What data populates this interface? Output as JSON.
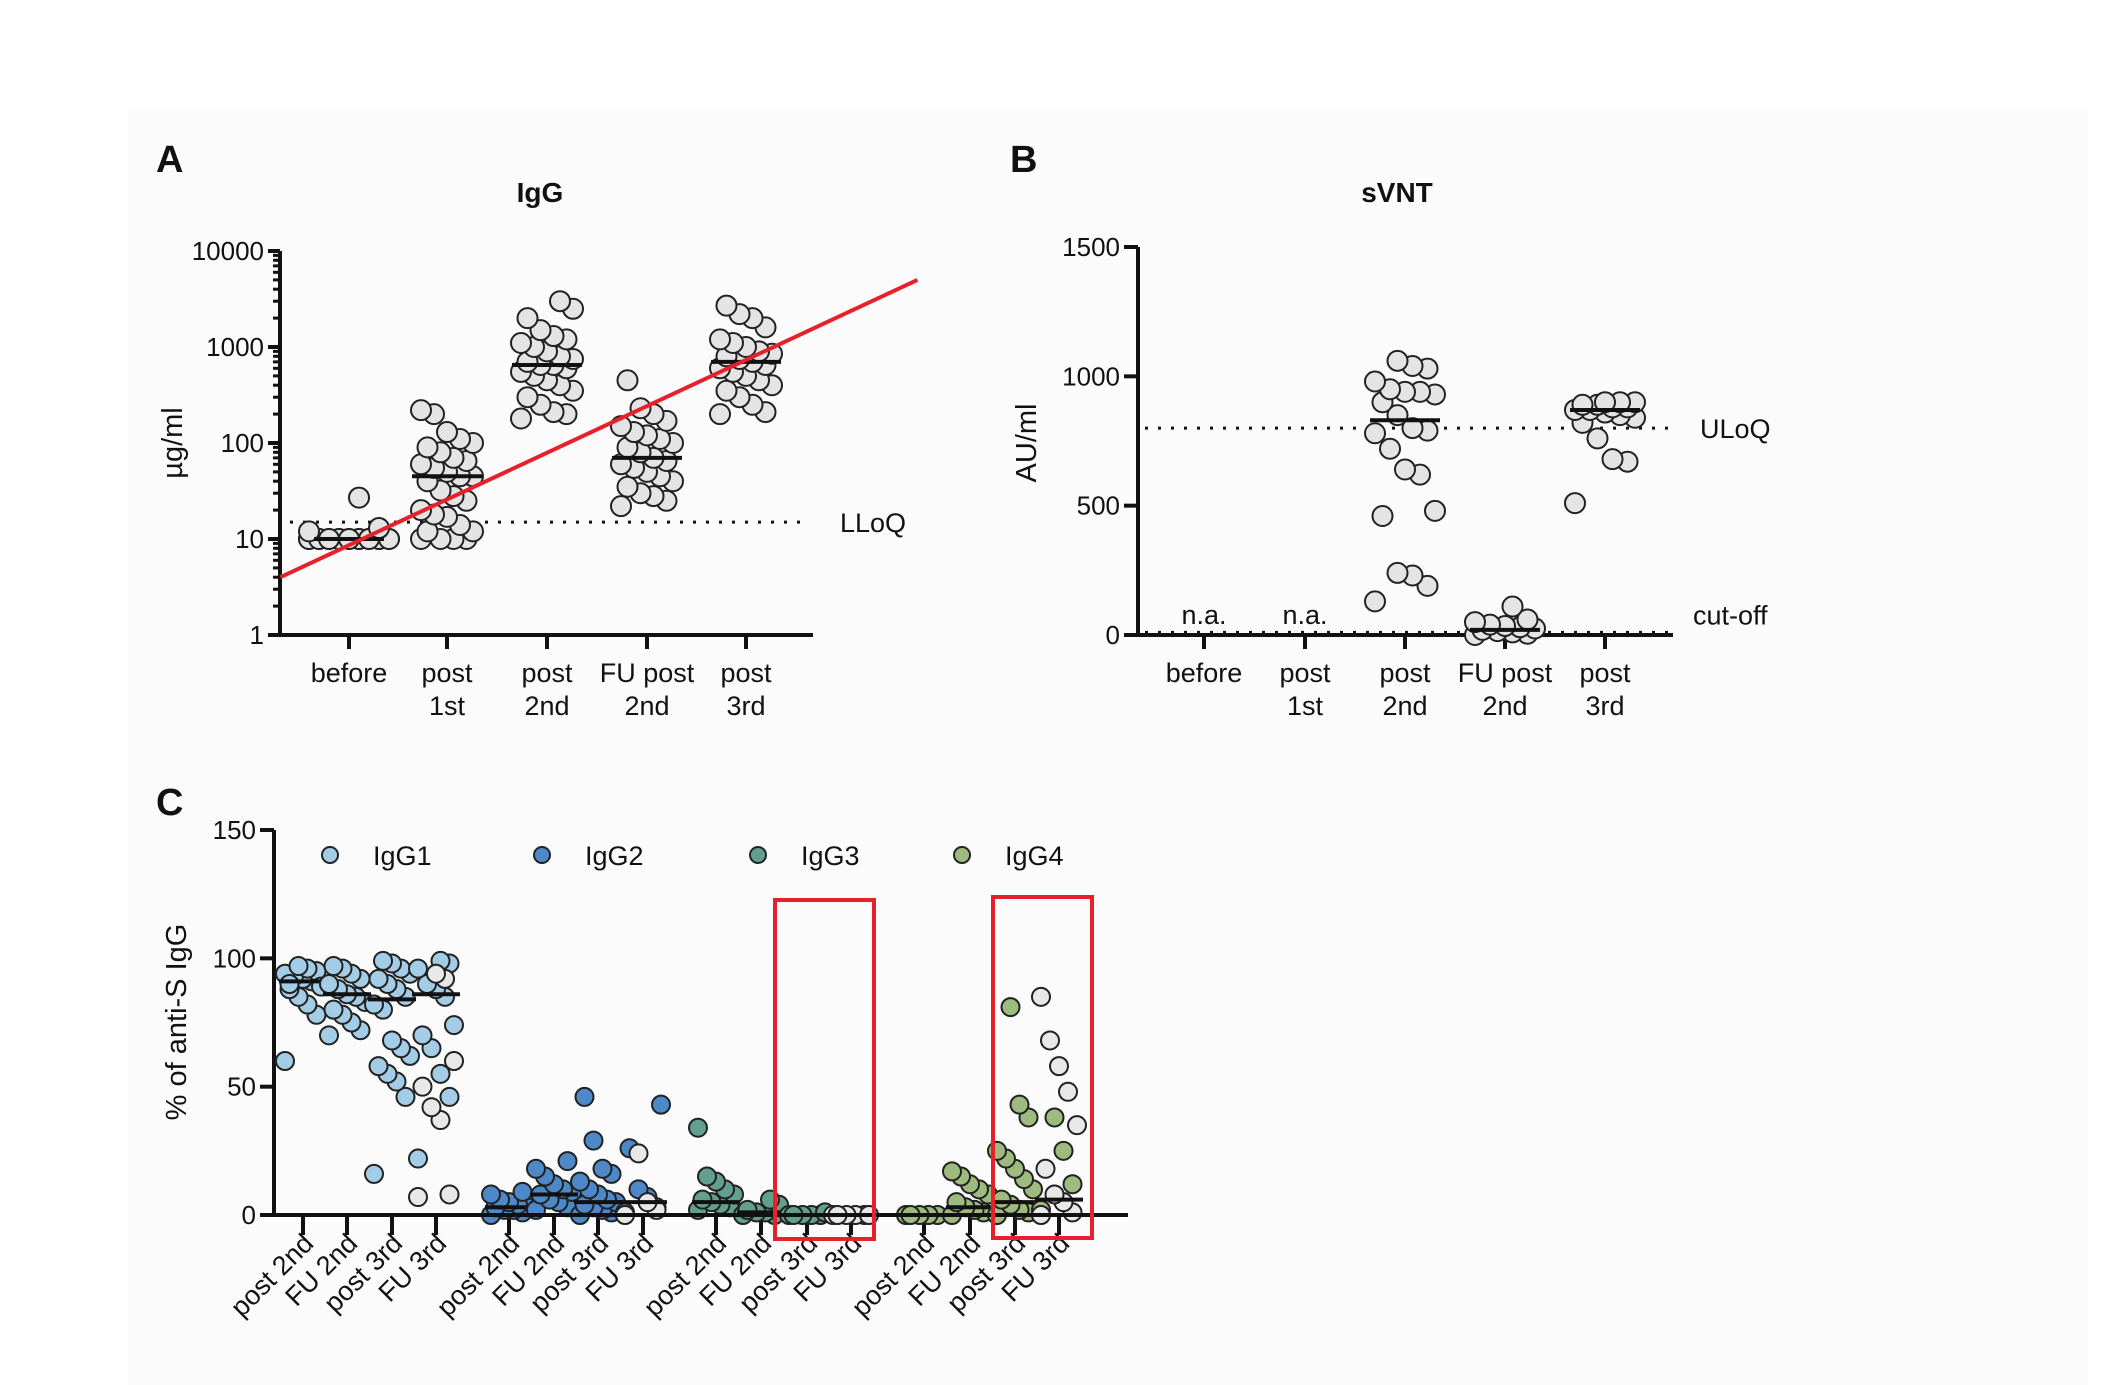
{
  "chart_data": [
    {
      "panel": "A",
      "type": "scatter",
      "title": "IgG",
      "ylabel": "µg/ml",
      "yscale": "log",
      "ylim": [
        1,
        10000
      ],
      "yticks": [
        "1",
        "10",
        "100",
        "1000",
        "10000"
      ],
      "categories": [
        "before",
        "post\n1st",
        "post\n2nd",
        "FU post\n2nd",
        "post\n3rd"
      ],
      "category_lines": [
        [
          "before",
          ""
        ],
        [
          "post",
          "1st"
        ],
        [
          "post",
          "2nd"
        ],
        [
          "FU post",
          "2nd"
        ],
        [
          "post",
          "3rd"
        ]
      ],
      "reference_line": {
        "label": "LLoQ",
        "value": 15
      },
      "trend_line": {
        "color": "#e8202a",
        "from": [
          0.3,
          4
        ],
        "to": [
          6.8,
          5000
        ]
      },
      "series": [
        {
          "category": "before",
          "median": 10,
          "values": [
            10,
            10,
            10,
            10,
            10,
            10,
            10,
            10,
            10,
            10,
            10,
            10,
            10,
            10,
            10,
            10,
            10,
            10,
            12,
            13,
            27
          ]
        },
        {
          "category": "post 1st",
          "median": 45,
          "values": [
            10,
            10,
            10,
            10,
            12,
            12,
            14,
            17,
            18,
            20,
            25,
            28,
            32,
            40,
            45,
            45,
            50,
            55,
            60,
            65,
            70,
            80,
            90,
            100,
            110,
            130,
            200,
            220
          ]
        },
        {
          "category": "post 2nd",
          "median": 650,
          "values": [
            180,
            200,
            210,
            250,
            300,
            350,
            400,
            450,
            500,
            550,
            600,
            650,
            650,
            700,
            750,
            800,
            900,
            1000,
            1100,
            1200,
            1300,
            1500,
            2000,
            2500,
            3000
          ]
        },
        {
          "category": "FU post 2nd",
          "median": 70,
          "values": [
            22,
            25,
            28,
            30,
            35,
            40,
            45,
            50,
            55,
            60,
            65,
            70,
            80,
            90,
            100,
            110,
            120,
            130,
            150,
            170,
            200,
            230,
            450
          ]
        },
        {
          "category": "post 3rd",
          "median": 700,
          "values": [
            200,
            210,
            250,
            300,
            350,
            400,
            450,
            500,
            550,
            600,
            650,
            700,
            750,
            800,
            850,
            900,
            1000,
            1100,
            1200,
            1600,
            2000,
            2200,
            2700
          ]
        }
      ]
    },
    {
      "panel": "B",
      "type": "scatter",
      "title": "sVNT",
      "ylabel": "AU/ml",
      "ylim": [
        0,
        1500
      ],
      "yticks": [
        "0",
        "500",
        "1000",
        "1500"
      ],
      "category_lines": [
        [
          "before",
          ""
        ],
        [
          "post",
          "1st"
        ],
        [
          "post",
          "2nd"
        ],
        [
          "FU post",
          "2nd"
        ],
        [
          "post",
          "3rd"
        ]
      ],
      "reference_lines": [
        {
          "label": "ULoQ",
          "value": 800
        },
        {
          "label": "cut-off",
          "value": 10
        }
      ],
      "na_label": "n.a.",
      "series": [
        {
          "category": "before",
          "na": true,
          "values": []
        },
        {
          "category": "post 1st",
          "na": true,
          "values": []
        },
        {
          "category": "post 2nd",
          "median": 830,
          "values": [
            130,
            190,
            230,
            240,
            460,
            480,
            620,
            640,
            720,
            780,
            790,
            800,
            850,
            900,
            930,
            940,
            940,
            950,
            980,
            1030,
            1040,
            1060
          ]
        },
        {
          "category": "FU post 2nd",
          "median": 20,
          "values": [
            0,
            5,
            10,
            15,
            20,
            25,
            30,
            35,
            40,
            50,
            60,
            110
          ]
        },
        {
          "category": "post 3rd",
          "median": 870,
          "values": [
            510,
            670,
            680,
            760,
            820,
            840,
            850,
            860,
            870,
            870,
            880,
            880,
            890,
            890,
            900,
            900,
            900
          ]
        }
      ]
    },
    {
      "panel": "C",
      "type": "scatter",
      "ylabel": "% of anti-S IgG",
      "ylim": [
        0,
        150
      ],
      "yticks": [
        "0",
        "50",
        "100",
        "150"
      ],
      "legend": [
        {
          "label": "IgG1",
          "color": "#a3cde6"
        },
        {
          "label": "IgG2",
          "color": "#4d88c9"
        },
        {
          "label": "IgG3",
          "color": "#62a08e"
        },
        {
          "label": "IgG4",
          "color": "#9dbb7e"
        }
      ],
      "legend_placement": "top",
      "highlight_color": "#e8202a",
      "highlight_boxes": [
        [
          "IgG3",
          "post 3rd",
          "FU 3rd"
        ],
        [
          "IgG4",
          "post 3rd",
          "FU 3rd"
        ]
      ],
      "light_color": "#e8e8e8",
      "series": [
        {
          "subclass": "IgG1",
          "category": "post 2nd",
          "median": 91,
          "values": [
            60,
            78,
            82,
            85,
            88,
            90,
            91,
            92,
            93,
            94,
            95,
            96,
            97,
            90,
            89
          ],
          "light": []
        },
        {
          "subclass": "IgG1",
          "category": "FU 2nd",
          "median": 86,
          "values": [
            70,
            72,
            75,
            78,
            80,
            83,
            85,
            86,
            88,
            90,
            92,
            94,
            96,
            97
          ],
          "light": []
        },
        {
          "subclass": "IgG1",
          "category": "post 3rd",
          "median": 84,
          "values": [
            16,
            46,
            52,
            55,
            58,
            62,
            65,
            68,
            80,
            82,
            85,
            88,
            90,
            92,
            94,
            96,
            98,
            99
          ],
          "light": []
        },
        {
          "subclass": "IgG1",
          "category": "FU 3rd",
          "median": 86,
          "values": [
            22,
            46,
            55,
            65,
            70,
            74,
            85,
            88,
            90,
            96,
            98,
            99
          ],
          "light": [
            7,
            8,
            37,
            42,
            50,
            60,
            92,
            94
          ]
        },
        {
          "subclass": "IgG2",
          "category": "post 2nd",
          "median": 3,
          "values": [
            0,
            1,
            2,
            2,
            3,
            3,
            4,
            5,
            6,
            8,
            9
          ],
          "light": []
        },
        {
          "subclass": "IgG2",
          "category": "FU 2nd",
          "median": 8,
          "values": [
            2,
            3,
            5,
            6,
            8,
            9,
            10,
            12,
            15,
            18,
            21
          ],
          "light": []
        },
        {
          "subclass": "IgG2",
          "category": "post 3rd",
          "median": 5,
          "values": [
            0,
            1,
            2,
            3,
            4,
            5,
            6,
            8,
            10,
            13,
            16,
            18,
            29,
            46
          ],
          "light": []
        },
        {
          "subclass": "IgG2",
          "category": "FU 3rd",
          "median": 5,
          "values": [
            1,
            3,
            7,
            10,
            26,
            43
          ],
          "light": [
            0,
            2,
            5,
            24
          ]
        },
        {
          "subclass": "IgG3",
          "category": "post 2nd",
          "median": 5,
          "values": [
            2,
            3,
            4,
            5,
            6,
            8,
            10,
            13,
            15,
            34
          ],
          "light": []
        },
        {
          "subclass": "IgG3",
          "category": "FU 2nd",
          "median": 1,
          "values": [
            0,
            0,
            1,
            1,
            2,
            4,
            6
          ],
          "light": []
        },
        {
          "subclass": "IgG3",
          "category": "post 3rd",
          "median": 0,
          "values": [
            0,
            0,
            0,
            0,
            0,
            1
          ],
          "light": []
        },
        {
          "subclass": "IgG3",
          "category": "FU 3rd",
          "median": 0,
          "values": [],
          "light": [
            0,
            0,
            0,
            0,
            0,
            0
          ]
        },
        {
          "subclass": "IgG4",
          "category": "post 2nd",
          "median": 0,
          "values": [
            0,
            0,
            0,
            0,
            0
          ],
          "light": []
        },
        {
          "subclass": "IgG4",
          "category": "FU 2nd",
          "median": 3,
          "values": [
            0,
            1,
            2,
            3,
            5,
            8,
            10,
            12,
            15,
            17
          ],
          "light": []
        },
        {
          "subclass": "IgG4",
          "category": "post 3rd",
          "median": 5,
          "values": [
            0,
            1,
            2,
            4,
            6,
            10,
            14,
            18,
            22,
            25,
            38,
            43,
            81
          ],
          "light": []
        },
        {
          "subclass": "IgG4",
          "category": "FU 3rd",
          "median": 6,
          "values": [
            2,
            12,
            25,
            38
          ],
          "light": [
            0,
            1,
            5,
            8,
            18,
            35,
            48,
            58,
            68,
            85
          ]
        }
      ]
    }
  ],
  "panel_labels": [
    "A",
    "B",
    "C"
  ]
}
